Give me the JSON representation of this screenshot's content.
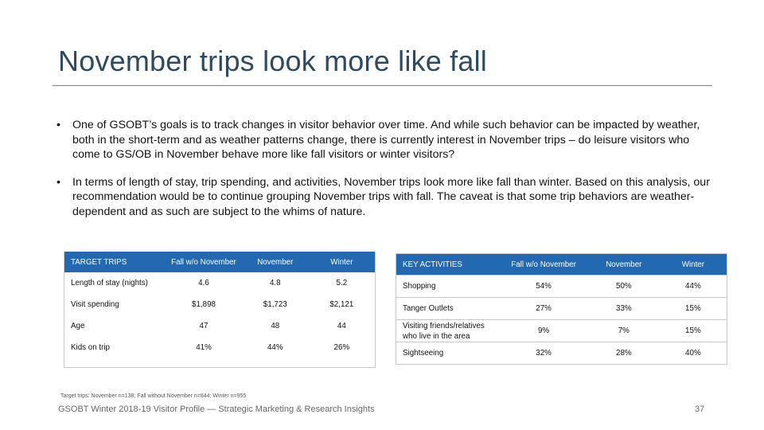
{
  "title": "November trips look more like fall",
  "bullet_glyph": "•",
  "bullets": [
    "One of GSOBT’s goals is to track changes in visitor behavior over time. And while such behavior can be impacted by weather, both in the short-term and as weather patterns change, there is currently interest in November trips – do leisure visitors who come to GS/OB in November behave more like fall visitors or winter visitors?",
    "In terms of length of stay, trip spending, and activities, November trips look more like fall than winter. Based on this analysis, our recommendation would be to continue grouping November trips with fall. The caveat is that some trip behaviors are weather-dependent and as such are subject to the whims of nature."
  ],
  "trips_table": {
    "headers": [
      "TARGET TRIPS",
      "Fall w/o November",
      "November",
      "Winter"
    ],
    "rows": [
      [
        "Length of stay (nights)",
        "4.6",
        "4.8",
        "5.2"
      ],
      [
        "Visit spending",
        "$1,898",
        "$1,723",
        "$2,121"
      ],
      [
        "Age",
        "47",
        "48",
        "44"
      ],
      [
        "Kids on trip",
        "41%",
        "44%",
        "26%"
      ]
    ]
  },
  "activities_table": {
    "headers": [
      "KEY ACTIVITIES",
      "Fall w/o November",
      "November",
      "Winter"
    ],
    "rows": [
      [
        "Shopping",
        "54%",
        "50%",
        "44%"
      ],
      [
        "Tanger Outlets",
        "27%",
        "33%",
        "15%"
      ],
      [
        "Visiting friends/relatives who live in the area",
        "9%",
        "7%",
        "15%"
      ],
      [
        "Sightseeing",
        "32%",
        "28%",
        "40%"
      ]
    ]
  },
  "footnote": "Target trips: November n=138; Fall without November n=844; Winter n=955",
  "footer": "GSOBT Winter 2018-19 Visitor Profile — Strategic Marketing & Research Insights",
  "page_number": "37",
  "colors": {
    "title": "#2e4a62",
    "table_header": "#2369b1",
    "rule": "#6b86a2"
  }
}
